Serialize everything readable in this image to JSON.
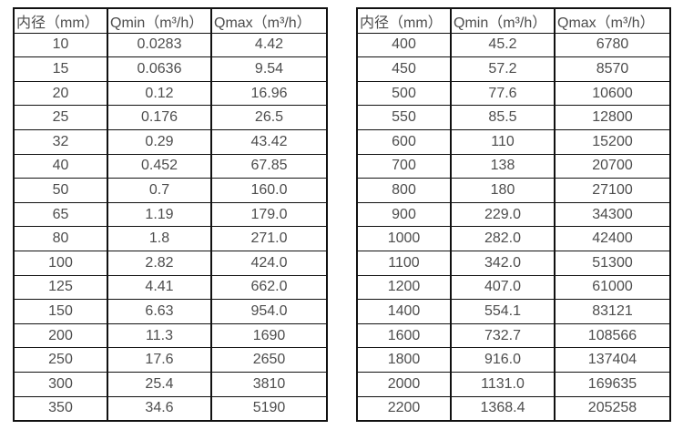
{
  "colors": {
    "border": "#111111",
    "text": "#4d4d4d",
    "background": "#ffffff"
  },
  "tables": [
    {
      "name": "flow-table-small-diameters",
      "headers": [
        "内径（mm）",
        "Qmin（m³/h）",
        "Qmax（m³/h）"
      ],
      "rows": [
        [
          "10",
          "0.0283",
          "4.42"
        ],
        [
          "15",
          "0.0636",
          "9.54"
        ],
        [
          "20",
          "0.12",
          "16.96"
        ],
        [
          "25",
          "0.176",
          "26.5"
        ],
        [
          "32",
          "0.29",
          "43.42"
        ],
        [
          "40",
          "0.452",
          "67.85"
        ],
        [
          "50",
          "0.7",
          "160.0"
        ],
        [
          "65",
          "1.19",
          "179.0"
        ],
        [
          "80",
          "1.8",
          "271.0"
        ],
        [
          "100",
          "2.82",
          "424.0"
        ],
        [
          "125",
          "4.41",
          "662.0"
        ],
        [
          "150",
          "6.63",
          "954.0"
        ],
        [
          "200",
          "11.3",
          "1690"
        ],
        [
          "250",
          "17.6",
          "2650"
        ],
        [
          "300",
          "25.4",
          "3810"
        ],
        [
          "350",
          "34.6",
          "5190"
        ]
      ]
    },
    {
      "name": "flow-table-large-diameters",
      "headers": [
        "内径（mm）",
        "Qmin（m³/h）",
        "Qmax（m³/h）"
      ],
      "rows": [
        [
          "400",
          "45.2",
          "6780"
        ],
        [
          "450",
          "57.2",
          "8570"
        ],
        [
          "500",
          "77.6",
          "10600"
        ],
        [
          "550",
          "85.5",
          "12800"
        ],
        [
          "600",
          "110",
          "15200"
        ],
        [
          "700",
          "138",
          "20700"
        ],
        [
          "800",
          "180",
          "27100"
        ],
        [
          "900",
          "229.0",
          "34300"
        ],
        [
          "1000",
          "282.0",
          "42400"
        ],
        [
          "1100",
          "342.0",
          "51300"
        ],
        [
          "1200",
          "407.0",
          "61000"
        ],
        [
          "1400",
          "554.1",
          "83121"
        ],
        [
          "1600",
          "732.7",
          "108566"
        ],
        [
          "1800",
          "916.0",
          "137404"
        ],
        [
          "2000",
          "1131.0",
          "169635"
        ],
        [
          "2200",
          "1368.4",
          "205258"
        ]
      ]
    }
  ]
}
